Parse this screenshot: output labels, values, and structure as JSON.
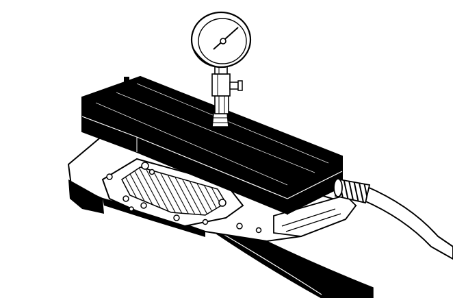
{
  "figure": {
    "subject": "line-drawing",
    "colors": {
      "ink": "#000000",
      "paper": "#ffffff"
    },
    "parts": {
      "gauge": "pressure-gauge",
      "fitting": "gauge-fitting",
      "plate": "test-plate",
      "valve_body": "valve-body",
      "hose": "air-hose",
      "strap": "strap"
    }
  }
}
